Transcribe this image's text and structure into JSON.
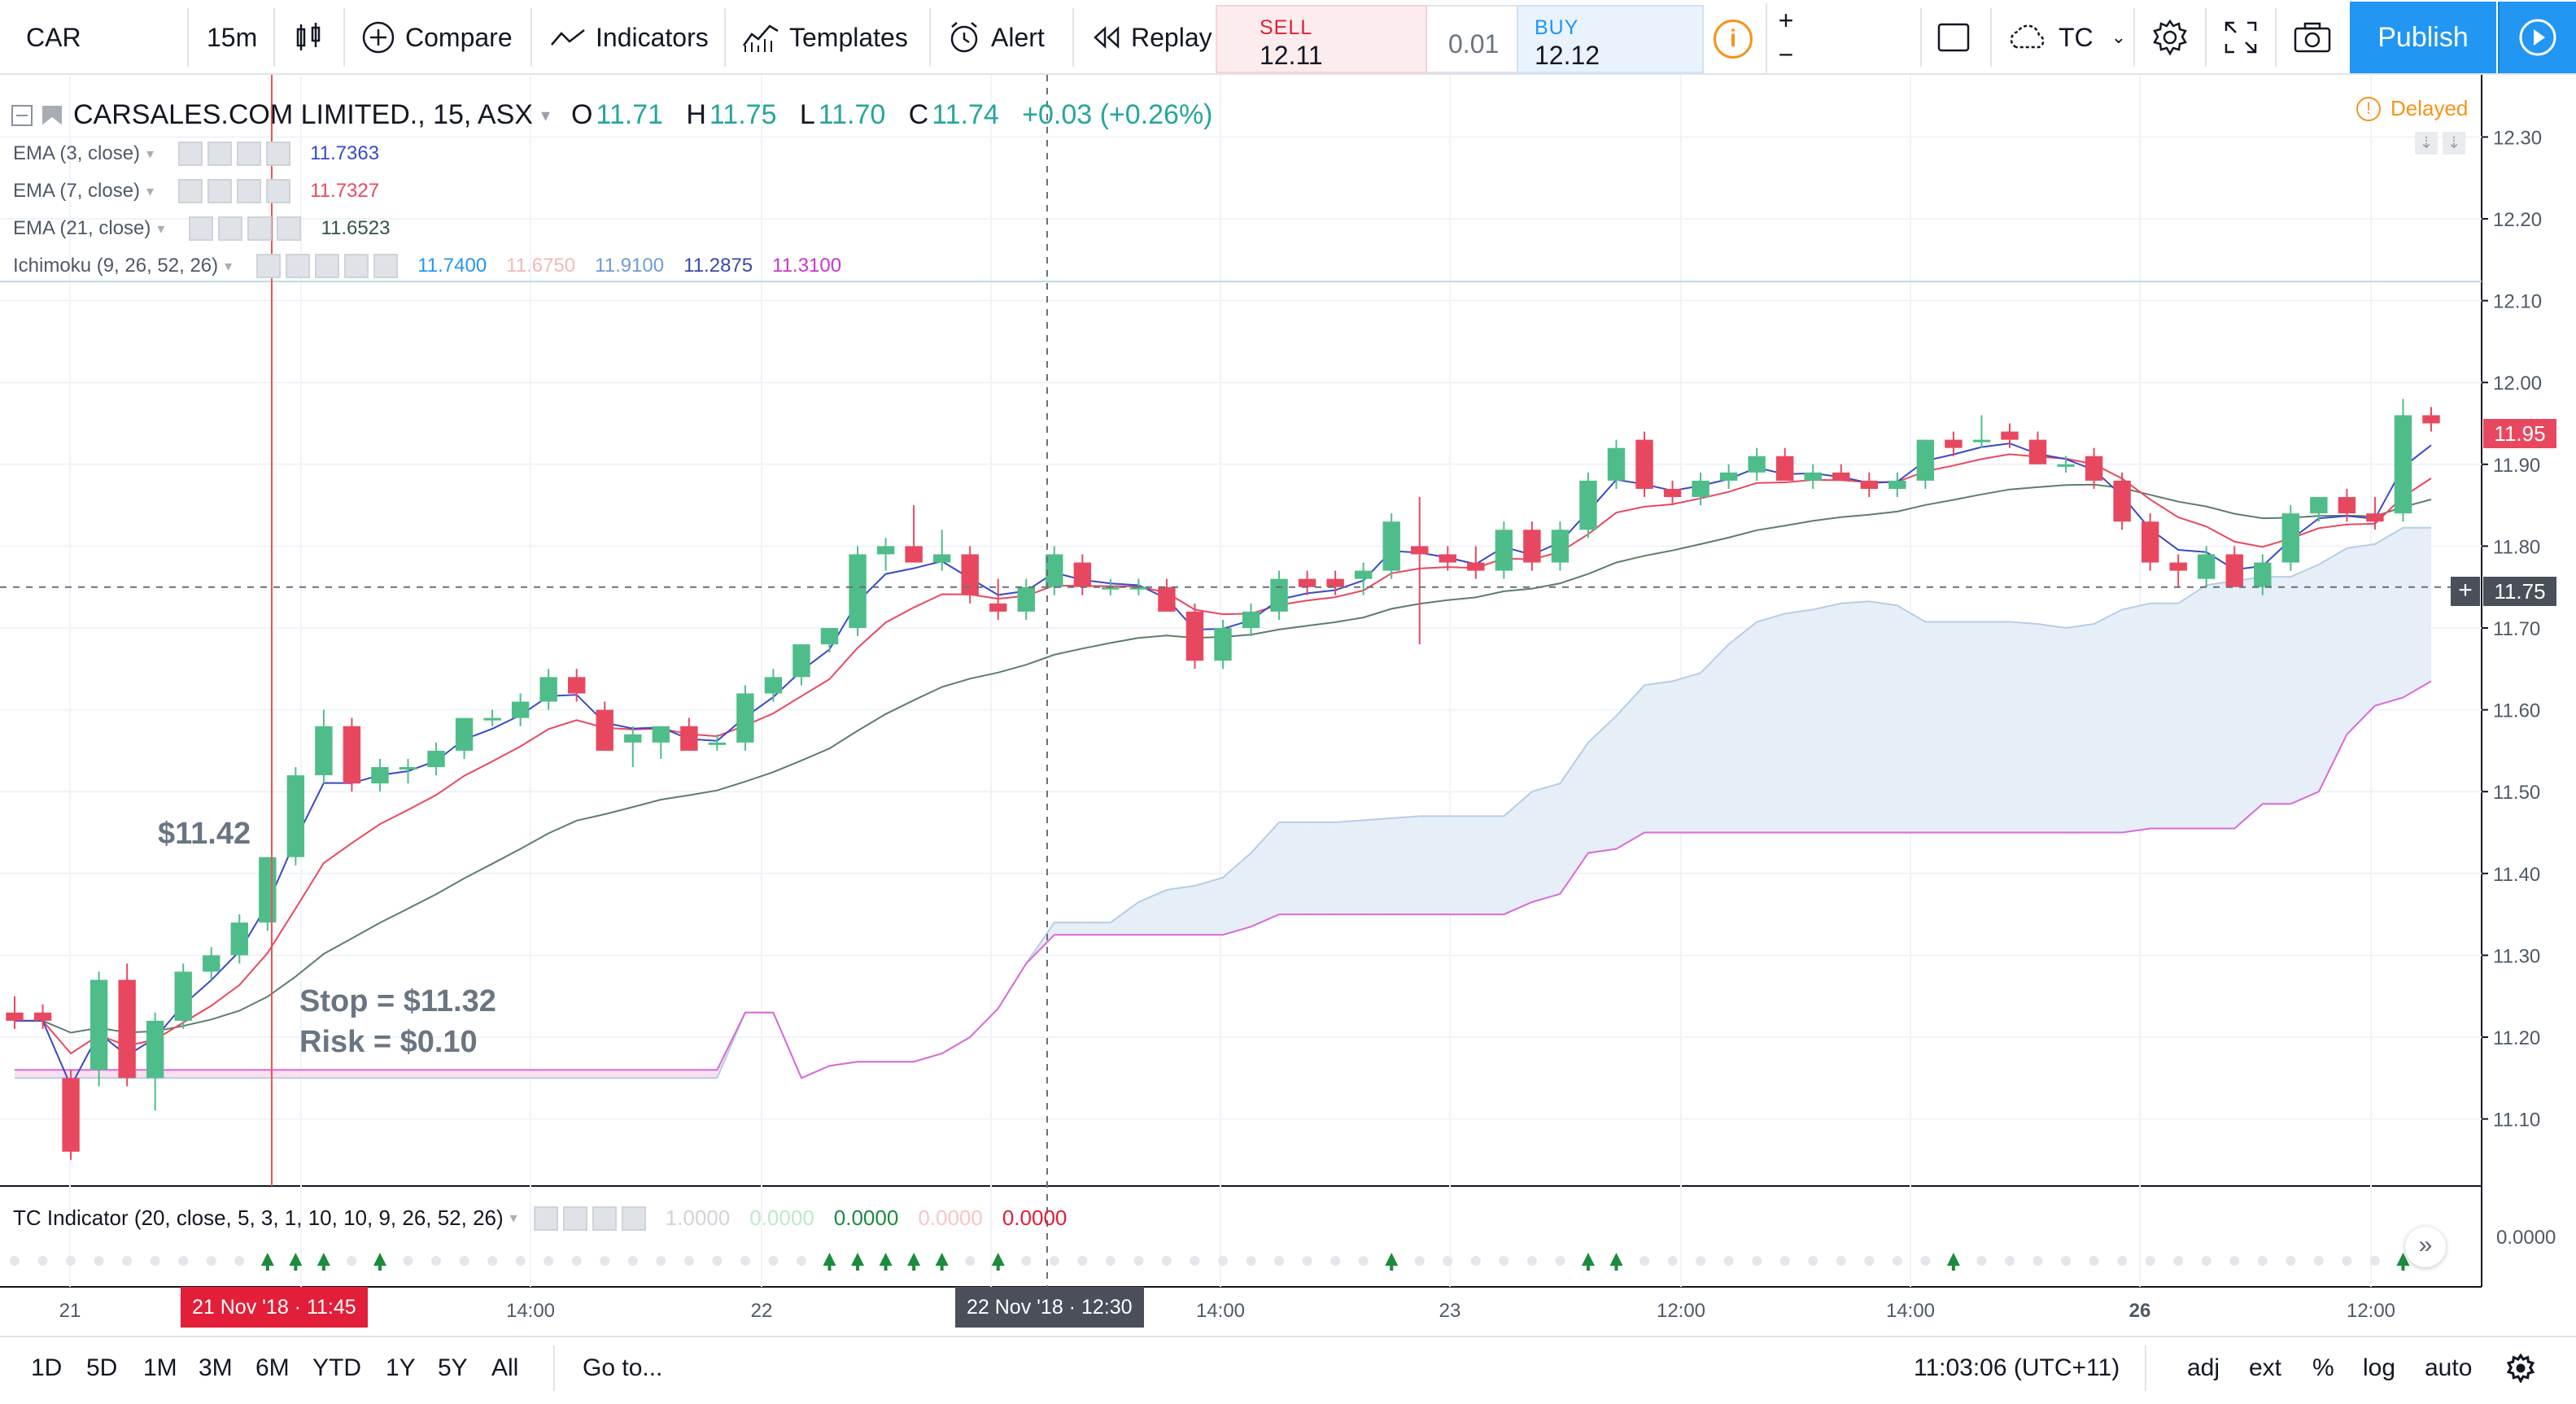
{
  "toolbar": {
    "symbol": "CAR",
    "interval": "15m",
    "compare": "Compare",
    "indicators": "Indicators",
    "templates": "Templates",
    "alert": "Alert",
    "replay": "Replay",
    "sell_label": "SELL",
    "sell_price": "12.11",
    "spread": "0.01",
    "buy_label": "BUY",
    "buy_price": "12.12",
    "zoom_in": "+",
    "zoom_out": "−",
    "account": "TC",
    "publish": "Publish"
  },
  "legend": {
    "title": "CARSALES.COM LIMITED., 15, ASX",
    "o_label": "O",
    "o": "11.71",
    "h_label": "H",
    "h": "11.75",
    "l_label": "L",
    "l": "11.70",
    "c_label": "C",
    "c": "11.74",
    "change": "+0.03 (+0.26%)",
    "delayed": "Delayed",
    "ema3": "EMA (3, close)",
    "ema3_val": "11.7363",
    "ema7": "EMA (7, close)",
    "ema7_val": "11.7327",
    "ema21": "EMA (21, close)",
    "ema21_val": "11.6523",
    "ichimoku": "Ichimoku (9, 26, 52, 26)",
    "ichimoku_vals": [
      "11.7400",
      "11.6750",
      "11.9100",
      "11.2875",
      "11.3100"
    ],
    "tc": "TC Indicator (20, close, 5, 3, 1, 10, 10, 9, 26, 52, 26)",
    "tc_vals": [
      "1.0000",
      "0.0000",
      "0.0000",
      "0.0000",
      "0.0000"
    ]
  },
  "annotations": {
    "entry": "$11.42",
    "stop": "Stop = $11.32",
    "risk": "Risk = $0.10"
  },
  "price_tags": {
    "last": "11.95",
    "crosshair": "11.75"
  },
  "indicator_axis": "0.0000",
  "colors": {
    "up": "#4fbd8a",
    "down": "#e8485f",
    "ema3": "#3a49c8",
    "ema7": "#e8485f",
    "ema21": "#5d7e6d",
    "cloud_bull": "#e6eef8",
    "cloud_bear": "#fbe0ef",
    "span_b": "#d86ad8",
    "accent": "#2196f3"
  },
  "chart_data": {
    "type": "candlestick",
    "title": "CARSALES.COM LIMITED., 15, ASX",
    "y_axis": {
      "ticks": [
        12.3,
        12.2,
        12.1,
        12.0,
        11.9,
        11.8,
        11.7,
        11.6,
        11.5,
        11.4,
        11.3,
        11.2,
        11.1
      ],
      "ylim": [
        11.03,
        12.37
      ],
      "side": "right"
    },
    "x_axis": {
      "ticks": [
        "21",
        "14:00",
        "22",
        "14:00",
        "23",
        "12:00",
        "14:00",
        "26",
        "12:00"
      ]
    },
    "crosshair": {
      "price": 11.75,
      "time_label": "22 Nov '18 · 12:30"
    },
    "vertical_marker": {
      "time_label": "21 Nov '18 · 11:45"
    },
    "candles": [
      {
        "o": 11.23,
        "h": 11.25,
        "l": 11.21,
        "c": 11.22
      },
      {
        "o": 11.23,
        "h": 11.24,
        "l": 11.21,
        "c": 11.22
      },
      {
        "o": 11.15,
        "h": 11.16,
        "l": 11.05,
        "c": 11.06
      },
      {
        "o": 11.16,
        "h": 11.28,
        "l": 11.14,
        "c": 11.27
      },
      {
        "o": 11.27,
        "h": 11.29,
        "l": 11.14,
        "c": 11.15
      },
      {
        "o": 11.15,
        "h": 11.23,
        "l": 11.11,
        "c": 11.22
      },
      {
        "o": 11.22,
        "h": 11.29,
        "l": 11.21,
        "c": 11.28
      },
      {
        "o": 11.28,
        "h": 11.31,
        "l": 11.27,
        "c": 11.3
      },
      {
        "o": 11.3,
        "h": 11.35,
        "l": 11.29,
        "c": 11.34
      },
      {
        "o": 11.34,
        "h": 11.42,
        "l": 11.33,
        "c": 11.42
      },
      {
        "o": 11.42,
        "h": 11.53,
        "l": 11.41,
        "c": 11.52
      },
      {
        "o": 11.52,
        "h": 11.6,
        "l": 11.51,
        "c": 11.58
      },
      {
        "o": 11.58,
        "h": 11.59,
        "l": 11.5,
        "c": 11.51
      },
      {
        "o": 11.51,
        "h": 11.54,
        "l": 11.5,
        "c": 11.53
      },
      {
        "o": 11.53,
        "h": 11.54,
        "l": 11.51,
        "c": 11.53
      },
      {
        "o": 11.53,
        "h": 11.56,
        "l": 11.52,
        "c": 11.55
      },
      {
        "o": 11.55,
        "h": 11.59,
        "l": 11.54,
        "c": 11.59
      },
      {
        "o": 11.59,
        "h": 11.6,
        "l": 11.58,
        "c": 11.59
      },
      {
        "o": 11.59,
        "h": 11.62,
        "l": 11.58,
        "c": 11.61
      },
      {
        "o": 11.61,
        "h": 11.65,
        "l": 11.6,
        "c": 11.64
      },
      {
        "o": 11.64,
        "h": 11.65,
        "l": 11.61,
        "c": 11.62
      },
      {
        "o": 11.6,
        "h": 11.61,
        "l": 11.55,
        "c": 11.55
      },
      {
        "o": 11.56,
        "h": 11.58,
        "l": 11.53,
        "c": 11.57
      },
      {
        "o": 11.56,
        "h": 11.58,
        "l": 11.54,
        "c": 11.58
      },
      {
        "o": 11.58,
        "h": 11.59,
        "l": 11.55,
        "c": 11.55
      },
      {
        "o": 11.56,
        "h": 11.57,
        "l": 11.55,
        "c": 11.56
      },
      {
        "o": 11.56,
        "h": 11.63,
        "l": 11.55,
        "c": 11.62
      },
      {
        "o": 11.62,
        "h": 11.65,
        "l": 11.61,
        "c": 11.64
      },
      {
        "o": 11.64,
        "h": 11.68,
        "l": 11.63,
        "c": 11.68
      },
      {
        "o": 11.68,
        "h": 11.7,
        "l": 11.67,
        "c": 11.7
      },
      {
        "o": 11.7,
        "h": 11.8,
        "l": 11.69,
        "c": 11.79
      },
      {
        "o": 11.79,
        "h": 11.81,
        "l": 11.77,
        "c": 11.8
      },
      {
        "o": 11.8,
        "h": 11.85,
        "l": 11.78,
        "c": 11.78
      },
      {
        "o": 11.78,
        "h": 11.82,
        "l": 11.77,
        "c": 11.79
      },
      {
        "o": 11.79,
        "h": 11.8,
        "l": 11.73,
        "c": 11.74
      },
      {
        "o": 11.73,
        "h": 11.76,
        "l": 11.71,
        "c": 11.72
      },
      {
        "o": 11.72,
        "h": 11.76,
        "l": 11.71,
        "c": 11.75
      },
      {
        "o": 11.75,
        "h": 11.8,
        "l": 11.74,
        "c": 11.79
      },
      {
        "o": 11.78,
        "h": 11.79,
        "l": 11.74,
        "c": 11.75
      },
      {
        "o": 11.75,
        "h": 11.76,
        "l": 11.74,
        "c": 11.75
      },
      {
        "o": 11.75,
        "h": 11.76,
        "l": 11.74,
        "c": 11.75
      },
      {
        "o": 11.75,
        "h": 11.76,
        "l": 11.72,
        "c": 11.72
      },
      {
        "o": 11.72,
        "h": 11.73,
        "l": 11.65,
        "c": 11.66
      },
      {
        "o": 11.66,
        "h": 11.71,
        "l": 11.65,
        "c": 11.7
      },
      {
        "o": 11.7,
        "h": 11.73,
        "l": 11.69,
        "c": 11.72
      },
      {
        "o": 11.72,
        "h": 11.77,
        "l": 11.71,
        "c": 11.76
      },
      {
        "o": 11.76,
        "h": 11.77,
        "l": 11.74,
        "c": 11.75
      },
      {
        "o": 11.76,
        "h": 11.77,
        "l": 11.74,
        "c": 11.75
      },
      {
        "o": 11.76,
        "h": 11.78,
        "l": 11.74,
        "c": 11.77
      },
      {
        "o": 11.77,
        "h": 11.84,
        "l": 11.76,
        "c": 11.83
      },
      {
        "o": 11.8,
        "h": 11.86,
        "l": 11.68,
        "c": 11.79
      },
      {
        "o": 11.79,
        "h": 11.8,
        "l": 11.77,
        "c": 11.78
      },
      {
        "o": 11.78,
        "h": 11.8,
        "l": 11.76,
        "c": 11.77
      },
      {
        "o": 11.77,
        "h": 11.83,
        "l": 11.76,
        "c": 11.82
      },
      {
        "o": 11.82,
        "h": 11.83,
        "l": 11.77,
        "c": 11.78
      },
      {
        "o": 11.78,
        "h": 11.83,
        "l": 11.77,
        "c": 11.82
      },
      {
        "o": 11.82,
        "h": 11.89,
        "l": 11.81,
        "c": 11.88
      },
      {
        "o": 11.88,
        "h": 11.93,
        "l": 11.87,
        "c": 11.92
      },
      {
        "o": 11.93,
        "h": 11.94,
        "l": 11.86,
        "c": 11.87
      },
      {
        "o": 11.87,
        "h": 11.88,
        "l": 11.85,
        "c": 11.86
      },
      {
        "o": 11.86,
        "h": 11.89,
        "l": 11.85,
        "c": 11.88
      },
      {
        "o": 11.88,
        "h": 11.9,
        "l": 11.87,
        "c": 11.89
      },
      {
        "o": 11.89,
        "h": 11.92,
        "l": 11.88,
        "c": 11.91
      },
      {
        "o": 11.91,
        "h": 11.92,
        "l": 11.88,
        "c": 11.88
      },
      {
        "o": 11.88,
        "h": 11.9,
        "l": 11.87,
        "c": 11.89
      },
      {
        "o": 11.89,
        "h": 11.9,
        "l": 11.88,
        "c": 11.88
      },
      {
        "o": 11.88,
        "h": 11.89,
        "l": 11.86,
        "c": 11.87
      },
      {
        "o": 11.87,
        "h": 11.89,
        "l": 11.86,
        "c": 11.88
      },
      {
        "o": 11.88,
        "h": 11.93,
        "l": 11.87,
        "c": 11.93
      },
      {
        "o": 11.93,
        "h": 11.94,
        "l": 11.91,
        "c": 11.92
      },
      {
        "o": 11.93,
        "h": 11.96,
        "l": 11.92,
        "c": 11.93
      },
      {
        "o": 11.94,
        "h": 11.95,
        "l": 11.92,
        "c": 11.93
      },
      {
        "o": 11.93,
        "h": 11.94,
        "l": 11.9,
        "c": 11.9
      },
      {
        "o": 11.9,
        "h": 11.91,
        "l": 11.89,
        "c": 11.9
      },
      {
        "o": 11.91,
        "h": 11.92,
        "l": 11.87,
        "c": 11.88
      },
      {
        "o": 11.88,
        "h": 11.89,
        "l": 11.82,
        "c": 11.83
      },
      {
        "o": 11.83,
        "h": 11.84,
        "l": 11.77,
        "c": 11.78
      },
      {
        "o": 11.78,
        "h": 11.79,
        "l": 11.75,
        "c": 11.77
      },
      {
        "o": 11.76,
        "h": 11.8,
        "l": 11.75,
        "c": 11.79
      },
      {
        "o": 11.79,
        "h": 11.8,
        "l": 11.75,
        "c": 11.75
      },
      {
        "o": 11.75,
        "h": 11.79,
        "l": 11.74,
        "c": 11.78
      },
      {
        "o": 11.78,
        "h": 11.85,
        "l": 11.77,
        "c": 11.84
      },
      {
        "o": 11.84,
        "h": 11.86,
        "l": 11.83,
        "c": 11.86
      },
      {
        "o": 11.86,
        "h": 11.87,
        "l": 11.83,
        "c": 11.84
      },
      {
        "o": 11.84,
        "h": 11.86,
        "l": 11.82,
        "c": 11.83
      },
      {
        "o": 11.84,
        "h": 11.98,
        "l": 11.83,
        "c": 11.96
      },
      {
        "o": 11.96,
        "h": 11.97,
        "l": 11.94,
        "c": 11.95
      }
    ]
  }
}
